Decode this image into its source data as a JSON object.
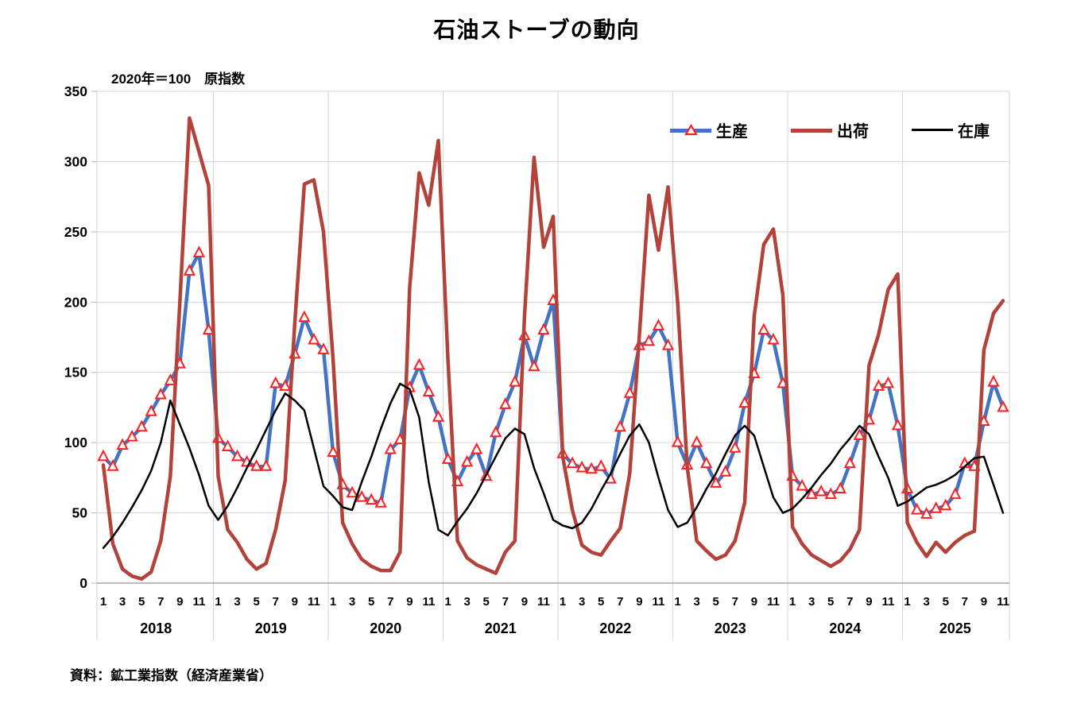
{
  "chart_data": {
    "type": "line",
    "title": "石油ストーブの動向",
    "index_note": "2020年＝100　原指数",
    "source": "資料：鉱工業指数（経済産業省）",
    "x_start": "2018-01",
    "x_end": "2025-11",
    "years": [
      "2018",
      "2019",
      "2020",
      "2021",
      "2022",
      "2023",
      "2024",
      "2025"
    ],
    "month_tick_labels": [
      "1",
      "3",
      "5",
      "7",
      "9",
      "11"
    ],
    "ylim": [
      0,
      350
    ],
    "ytick_step": 50,
    "ytick_labels": [
      "0",
      "50",
      "100",
      "150",
      "200",
      "250",
      "300",
      "350"
    ],
    "grid": true,
    "legend_position": "top-right-inside",
    "grid_color": "#D6D6D6",
    "axis_color": "#A6A6A6",
    "series": [
      {
        "name": "生産",
        "color": "#4472C4",
        "line_width": 4.5,
        "marker": {
          "shape": "triangle-open",
          "color": "#FF1F1F",
          "size": 13
        },
        "values": [
          90,
          83,
          98,
          104,
          111,
          122,
          134,
          144,
          156,
          222,
          235,
          180,
          103,
          97,
          90,
          86,
          83,
          83,
          142,
          140,
          163,
          189,
          173,
          166,
          93,
          70,
          64,
          61,
          59,
          57,
          95,
          102,
          139,
          155,
          136,
          118,
          88,
          72,
          86,
          95,
          76,
          107,
          127,
          143,
          176,
          154,
          180,
          201,
          92,
          85,
          82,
          81,
          83,
          74,
          111,
          135,
          169,
          172,
          183,
          169,
          100,
          84,
          100,
          85,
          71,
          79,
          96,
          128,
          149,
          180,
          173,
          142,
          76,
          69,
          63,
          65,
          63,
          67,
          85,
          105,
          116,
          140,
          142,
          112,
          67,
          52,
          49,
          53,
          55,
          63,
          85,
          83,
          115,
          143,
          125
        ]
      },
      {
        "name": "出荷",
        "color": "#B2423A",
        "line_width": 4.5,
        "marker": null,
        "values": [
          84,
          28,
          10,
          5,
          3,
          8,
          30,
          76,
          200,
          331,
          307,
          283,
          76,
          38,
          29,
          17,
          10,
          14,
          38,
          73,
          185,
          284,
          287,
          250,
          160,
          43,
          28,
          17,
          12,
          9,
          9,
          22,
          210,
          292,
          269,
          315,
          160,
          30,
          18,
          13,
          10,
          7,
          22,
          30,
          190,
          303,
          239,
          261,
          90,
          52,
          27,
          22,
          20,
          30,
          39,
          78,
          176,
          276,
          237,
          282,
          200,
          83,
          30,
          23,
          17,
          20,
          30,
          57,
          190,
          241,
          252,
          205,
          40,
          28,
          20,
          16,
          12,
          16,
          24,
          38,
          155,
          177,
          209,
          220,
          43,
          29,
          19,
          29,
          22,
          29,
          34,
          37,
          166,
          192,
          201
        ]
      },
      {
        "name": "在庫",
        "color": "#000000",
        "line_width": 2.5,
        "marker": null,
        "values": [
          25,
          33,
          43,
          54,
          66,
          80,
          100,
          130,
          113,
          96,
          77,
          55,
          45,
          55,
          68,
          82,
          95,
          109,
          123,
          135,
          130,
          123,
          96,
          69,
          62,
          54,
          52,
          72,
          90,
          110,
          128,
          142,
          138,
          118,
          72,
          38,
          34,
          44,
          53,
          64,
          77,
          90,
          103,
          110,
          106,
          82,
          64,
          45,
          41,
          39,
          43,
          53,
          66,
          78,
          92,
          105,
          113,
          100,
          75,
          52,
          40,
          43,
          54,
          67,
          78,
          92,
          105,
          112,
          105,
          83,
          61,
          50,
          53,
          60,
          68,
          77,
          85,
          95,
          103,
          112,
          106,
          90,
          75,
          55,
          58,
          63,
          68,
          70,
          73,
          77,
          83,
          89,
          90,
          70,
          50
        ]
      }
    ]
  }
}
